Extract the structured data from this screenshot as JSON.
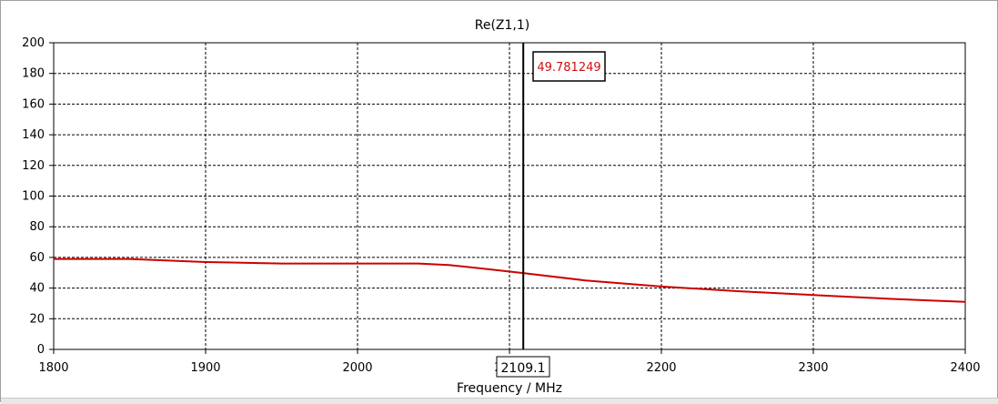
{
  "chart_data": {
    "type": "line",
    "title": "Re(Z1,1)",
    "xlabel": "Frequency / MHz",
    "ylabel": "",
    "xlim": [
      1800,
      2400
    ],
    "ylim": [
      0,
      200
    ],
    "x_ticks": [
      1800,
      1900,
      2000,
      2100,
      2200,
      2300,
      2400
    ],
    "y_ticks": [
      0,
      20,
      40,
      60,
      80,
      100,
      120,
      140,
      160,
      180,
      200
    ],
    "grid": true,
    "series": [
      {
        "color": "#cc0000",
        "x": [
          1800,
          1850,
          1900,
          1950,
          2000,
          2040,
          2060,
          2080,
          2109.1,
          2150,
          2200,
          2250,
          2300,
          2350,
          2400
        ],
        "y": [
          59,
          59,
          57,
          56,
          56,
          56,
          55,
          53,
          49.8,
          45,
          41,
          38,
          35.5,
          33,
          31
        ]
      }
    ],
    "marker": {
      "x": 2109.1,
      "x_label": "2109.1",
      "value_label": "49.781249",
      "value_color": "#d01010"
    }
  }
}
